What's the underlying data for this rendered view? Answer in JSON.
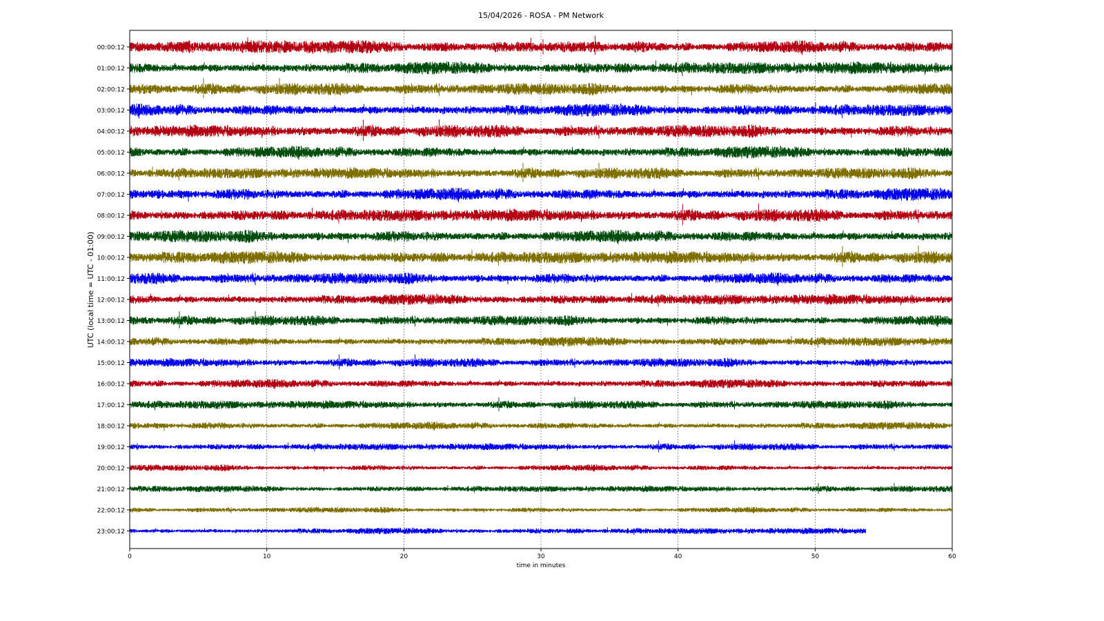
{
  "chart_data": {
    "type": "line",
    "title": "15/04/2026 - ROSA - PM Network",
    "xlabel": "time in minutes",
    "ylabel": "UTC (local time = UTC - 01:00)",
    "xlim": [
      0,
      60
    ],
    "xticks": [
      0,
      10,
      20,
      30,
      40,
      50,
      60
    ],
    "grid": "vertical dotted at x ticks",
    "trace_colors": [
      "#b30012",
      "#004d0d",
      "#7f6f00",
      "#0000ee"
    ],
    "series": [
      {
        "label": "00:00:12",
        "x_end": 60,
        "amplitude": 1.0
      },
      {
        "label": "01:00:12",
        "x_end": 60,
        "amplitude": 1.0
      },
      {
        "label": "02:00:12",
        "x_end": 60,
        "amplitude": 0.95
      },
      {
        "label": "03:00:12",
        "x_end": 60,
        "amplitude": 1.0
      },
      {
        "label": "04:00:12",
        "x_end": 60,
        "amplitude": 1.0
      },
      {
        "label": "05:00:12",
        "x_end": 60,
        "amplitude": 0.95
      },
      {
        "label": "06:00:12",
        "x_end": 60,
        "amplitude": 0.9
      },
      {
        "label": "07:00:12",
        "x_end": 60,
        "amplitude": 1.0
      },
      {
        "label": "08:00:12",
        "x_end": 60,
        "amplitude": 1.0
      },
      {
        "label": "09:00:12",
        "x_end": 60,
        "amplitude": 1.0
      },
      {
        "label": "10:00:12",
        "x_end": 60,
        "amplitude": 1.0
      },
      {
        "label": "11:00:12",
        "x_end": 60,
        "amplitude": 0.9
      },
      {
        "label": "12:00:12",
        "x_end": 60,
        "amplitude": 0.85
      },
      {
        "label": "13:00:12",
        "x_end": 60,
        "amplitude": 0.8
      },
      {
        "label": "14:00:12",
        "x_end": 60,
        "amplitude": 0.75
      },
      {
        "label": "15:00:12",
        "x_end": 60,
        "amplitude": 0.7
      },
      {
        "label": "16:00:12",
        "x_end": 60,
        "amplitude": 0.7
      },
      {
        "label": "17:00:12",
        "x_end": 60,
        "amplitude": 0.65
      },
      {
        "label": "18:00:12",
        "x_end": 60,
        "amplitude": 0.6
      },
      {
        "label": "19:00:12",
        "x_end": 60,
        "amplitude": 0.55
      },
      {
        "label": "20:00:12",
        "x_end": 60,
        "amplitude": 0.5
      },
      {
        "label": "21:00:12",
        "x_end": 60,
        "amplitude": 0.5
      },
      {
        "label": "22:00:12",
        "x_end": 60,
        "amplitude": 0.45
      },
      {
        "label": "23:00:12",
        "x_end": 53.7,
        "amplitude": 0.5
      }
    ]
  }
}
